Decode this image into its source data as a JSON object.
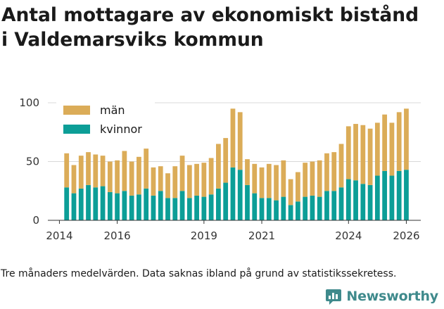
{
  "header": {
    "title_line1": "Antal mottagare av ekonomiskt bistånd",
    "title_line2": "i Valdemarsviks kommun"
  },
  "footer": {
    "note": "Tre månaders medelvärden. Data saknas ibland på grund av statistikssekretess.",
    "brand": "Newsworthy"
  },
  "colors": {
    "men": "#dbac58",
    "women": "#0c9e97",
    "grid": "#d9d9d9",
    "axis": "#333333",
    "brand": "#3f8a8c"
  },
  "chart_data": {
    "type": "bar",
    "stacked": true,
    "title": "Antal mottagare av ekonomiskt bistånd i Valdemarsviks kommun",
    "xlabel": "",
    "ylabel": "",
    "ylim": [
      0,
      100
    ],
    "xlim": [
      2013.6,
      2026.5
    ],
    "yticks": [
      0,
      50,
      100
    ],
    "xticks": [
      2014,
      2016,
      2019,
      2021,
      2024,
      2026
    ],
    "grid": true,
    "legend_position": "top-left",
    "x": [
      2014.25,
      2014.5,
      2014.75,
      2015.0,
      2015.25,
      2015.5,
      2015.75,
      2016.0,
      2016.25,
      2016.5,
      2016.75,
      2017.0,
      2017.25,
      2017.5,
      2017.75,
      2018.0,
      2018.25,
      2018.5,
      2018.75,
      2019.0,
      2019.25,
      2019.5,
      2019.75,
      2020.0,
      2020.25,
      2020.5,
      2020.75,
      2021.0,
      2021.25,
      2021.5,
      2021.75,
      2022.0,
      2022.25,
      2022.5,
      2022.75,
      2023.0,
      2023.25,
      2023.5,
      2023.75,
      2024.0,
      2024.25,
      2024.5,
      2024.75,
      2025.0,
      2025.25,
      2025.5,
      2025.75,
      2026.0
    ],
    "series": [
      {
        "name": "kvinnor",
        "values": [
          28,
          23,
          27,
          30,
          28,
          29,
          24,
          23,
          25,
          21,
          22,
          27,
          21,
          25,
          19,
          19,
          25,
          19,
          21,
          20,
          22,
          27,
          32,
          45,
          43,
          30,
          23,
          19,
          19,
          17,
          20,
          13,
          16,
          20,
          21,
          20,
          25,
          25,
          28,
          35,
          34,
          31,
          30,
          38,
          42,
          38,
          42,
          43
        ]
      },
      {
        "name": "män",
        "values": [
          29,
          24,
          28,
          28,
          28,
          26,
          26,
          28,
          34,
          29,
          32,
          34,
          24,
          21,
          21,
          27,
          30,
          28,
          27,
          29,
          31,
          38,
          38,
          50,
          49,
          22,
          25,
          26,
          29,
          30,
          31,
          22,
          25,
          29,
          29,
          31,
          32,
          33,
          37,
          45,
          48,
          50,
          48,
          45,
          48,
          45,
          50,
          52
        ]
      }
    ],
    "legend": [
      "män",
      "kvinnor"
    ]
  }
}
